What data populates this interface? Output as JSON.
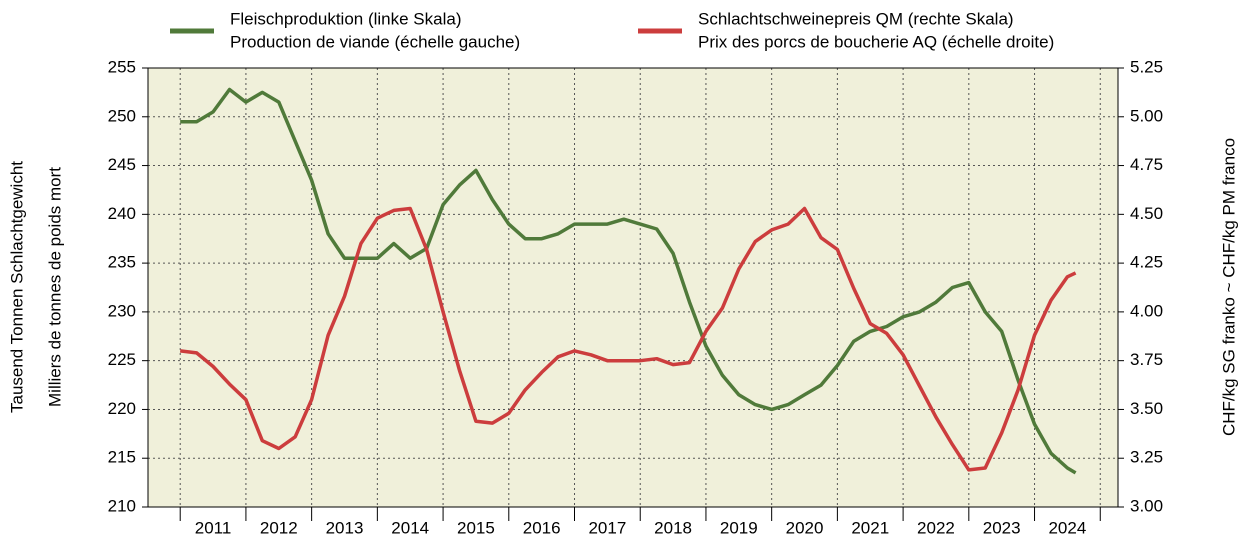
{
  "chart_data": {
    "type": "line",
    "ylabel": [
      "Tausend Tonnen Schlachtgewicht",
      "Milliers de tonnes de poids mort"
    ],
    "y2label": "CHF/kg SG franko  ~  CHF/kg PM franco",
    "x": [
      2011.0,
      2011.25,
      2011.5,
      2011.75,
      2012.0,
      2012.25,
      2012.5,
      2012.75,
      2013.0,
      2013.25,
      2013.5,
      2013.75,
      2014.0,
      2014.25,
      2014.5,
      2014.75,
      2015.0,
      2015.25,
      2015.5,
      2015.75,
      2016.0,
      2016.25,
      2016.5,
      2016.75,
      2017.0,
      2017.25,
      2017.5,
      2017.75,
      2018.0,
      2018.25,
      2018.5,
      2018.75,
      2019.0,
      2019.25,
      2019.5,
      2019.75,
      2020.0,
      2020.25,
      2020.5,
      2020.75,
      2021.0,
      2021.25,
      2021.5,
      2021.75,
      2022.0,
      2022.25,
      2022.5,
      2022.75,
      2023.0,
      2023.25,
      2023.5,
      2023.75,
      2024.0,
      2024.25,
      2024.5,
      2024.625
    ],
    "xlim": [
      2010.51,
      2025.27
    ],
    "xticks": [
      {
        "value": 2011.5,
        "label": "2011"
      },
      {
        "value": 2012.5,
        "label": "2012"
      },
      {
        "value": 2013.5,
        "label": "2013"
      },
      {
        "value": 2014.5,
        "label": "2014"
      },
      {
        "value": 2015.5,
        "label": "2015"
      },
      {
        "value": 2016.5,
        "label": "2016"
      },
      {
        "value": 2017.5,
        "label": "2017"
      },
      {
        "value": 2018.5,
        "label": "2018"
      },
      {
        "value": 2019.5,
        "label": "2019"
      },
      {
        "value": 2020.5,
        "label": "2020"
      },
      {
        "value": 2021.5,
        "label": "2021"
      },
      {
        "value": 2022.5,
        "label": "2022"
      },
      {
        "value": 2023.5,
        "label": "2023"
      },
      {
        "value": 2024.5,
        "label": "2024"
      }
    ],
    "ylim": [
      210,
      255
    ],
    "yticks": [
      210,
      215,
      220,
      225,
      230,
      235,
      240,
      245,
      250,
      255
    ],
    "y2lim": [
      3.0,
      5.25
    ],
    "y2ticks": [
      {
        "value": 3.0,
        "label": "3.00"
      },
      3.25,
      {
        "value": 3.5,
        "label": "3.50"
      },
      3.75,
      {
        "value": 4.0,
        "label": "4.00"
      },
      4.25,
      {
        "value": 4.5,
        "label": "4.50"
      },
      4.75,
      {
        "value": 5.0,
        "label": "5.00"
      },
      5.25
    ],
    "grid": true,
    "series": [
      {
        "name": "Fleischproduktion (linke Skala)",
        "subname": "Production de viande (échelle gauche)",
        "color": "#507a3a",
        "axis": "y",
        "values": [
          249.5,
          249.5,
          250.5,
          252.8,
          251.5,
          252.5,
          251.5,
          247.5,
          243.5,
          238,
          235.5,
          235.5,
          235.5,
          237,
          235.5,
          236.5,
          241,
          243,
          244.5,
          241.5,
          239,
          237.5,
          237.5,
          238,
          239,
          239,
          239,
          239.5,
          239,
          238.5,
          236,
          231,
          226.5,
          223.5,
          221.5,
          220.5,
          220,
          220.5,
          221.5,
          222.5,
          224.5,
          227,
          228,
          228.5,
          229.5,
          230,
          231,
          232.5,
          233,
          230,
          228,
          223,
          218.5,
          215.5,
          214,
          213.5
        ]
      },
      {
        "name": "Schlachtschweinepreis QM (rechte Skala)",
        "subname": "Prix des porcs de boucherie AQ (échelle droite)",
        "color": "#cc3d3d",
        "axis": "y2",
        "values": [
          3.8,
          3.79,
          3.72,
          3.63,
          3.55,
          3.34,
          3.3,
          3.36,
          3.55,
          3.88,
          4.08,
          4.35,
          4.48,
          4.52,
          4.53,
          4.32,
          4.0,
          3.7,
          3.44,
          3.43,
          3.48,
          3.6,
          3.69,
          3.77,
          3.8,
          3.78,
          3.75,
          3.75,
          3.75,
          3.76,
          3.73,
          3.74,
          3.9,
          4.02,
          4.22,
          4.36,
          4.42,
          4.45,
          4.53,
          4.38,
          4.32,
          4.12,
          3.94,
          3.89,
          3.78,
          3.62,
          3.46,
          3.32,
          3.19,
          3.2,
          3.38,
          3.6,
          3.88,
          4.06,
          4.18,
          4.2
        ]
      }
    ]
  }
}
